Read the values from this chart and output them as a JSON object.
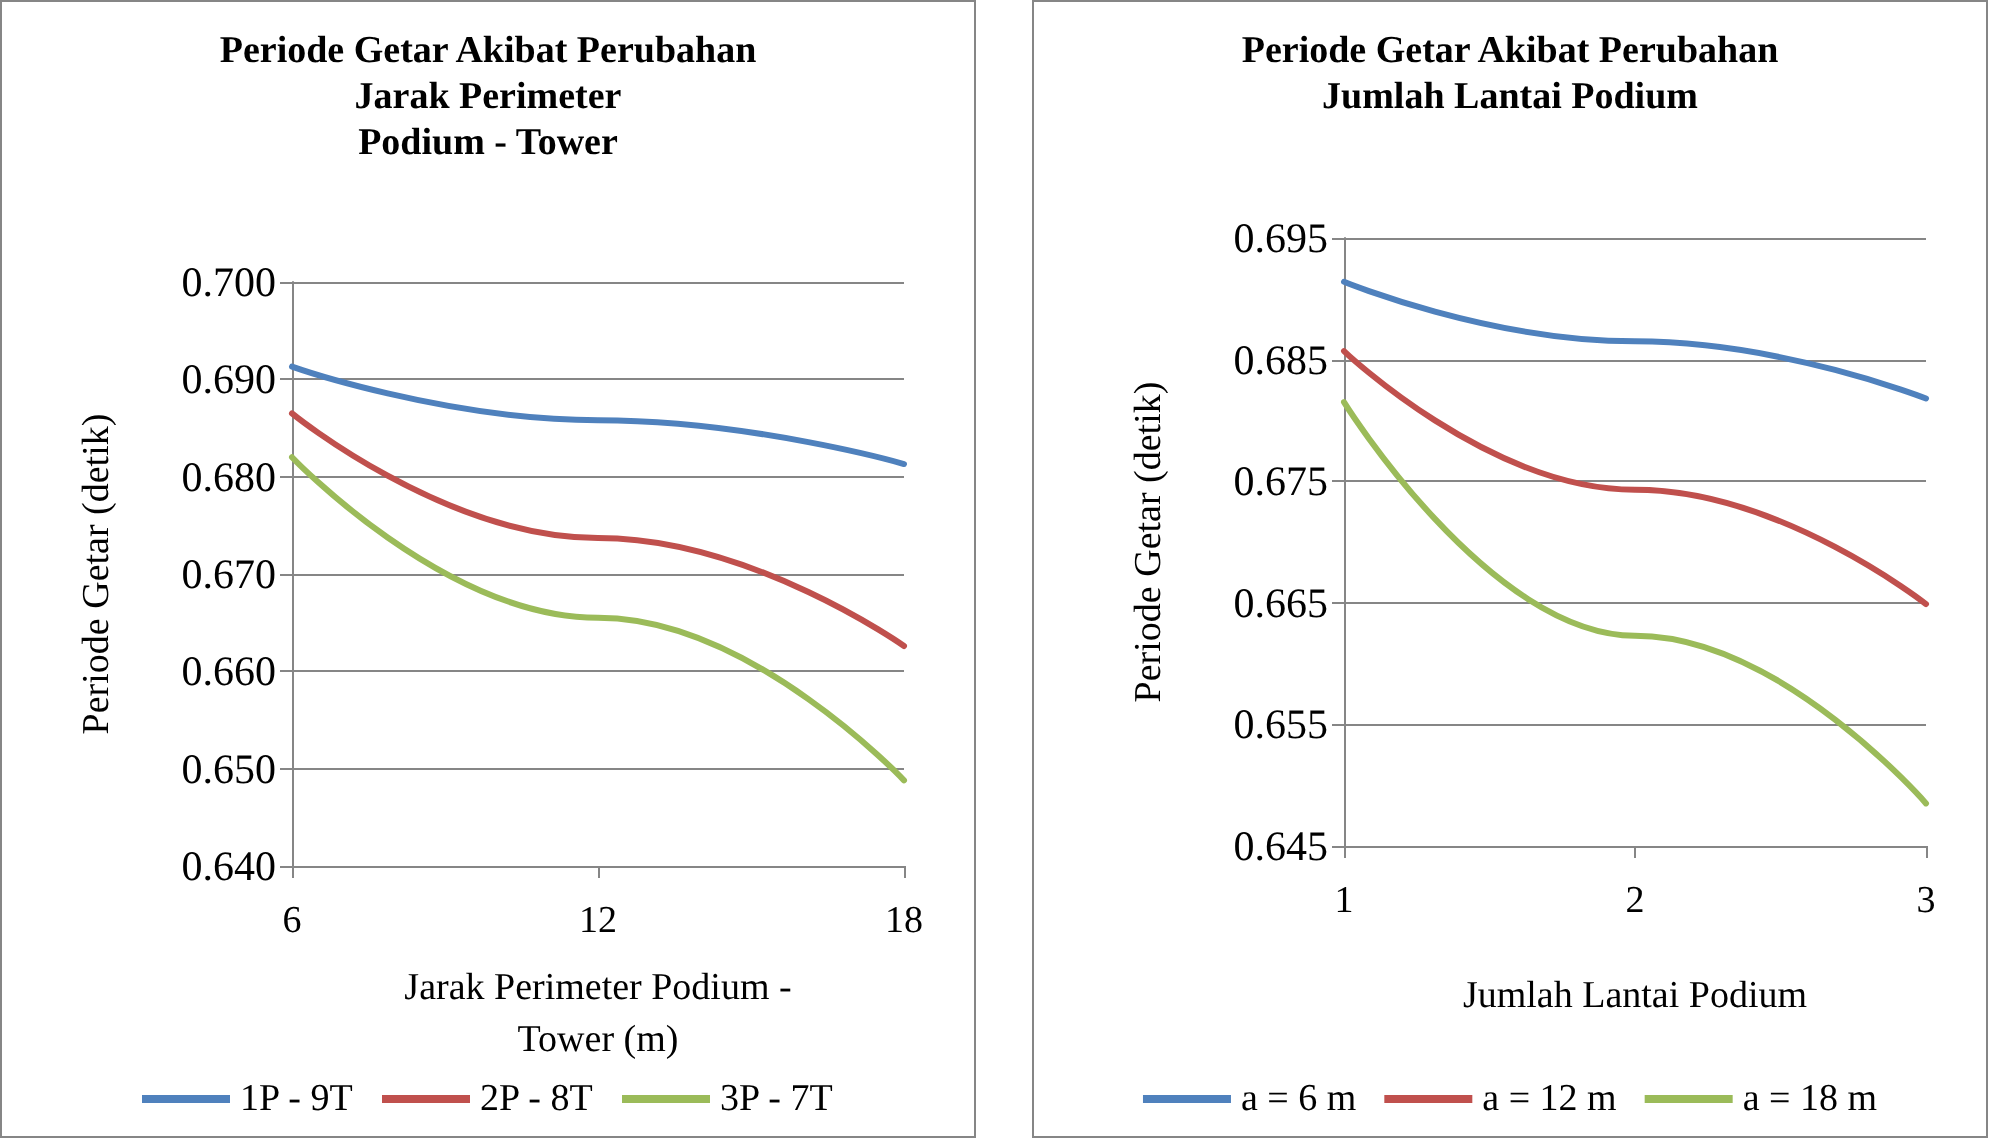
{
  "chart_data": [
    {
      "type": "line",
      "title": "Periode Getar Akibat Perubahan\nJarak Perimeter\nPodium - Tower",
      "xlabel": "Jarak Perimeter Podium -\nTower (m)",
      "ylabel": "Periode Getar (detik)",
      "x": [
        6,
        12,
        18
      ],
      "xlim": [
        6,
        18
      ],
      "xticks": [
        6,
        12,
        18
      ],
      "ylim": [
        0.64,
        0.7
      ],
      "yticks": [
        {
          "value": 0.64,
          "label": "0.640"
        },
        {
          "value": 0.65,
          "label": "0.650"
        },
        {
          "value": 0.66,
          "label": "0.660"
        },
        {
          "value": 0.67,
          "label": "0.670"
        },
        {
          "value": 0.68,
          "label": "0.680"
        },
        {
          "value": 0.69,
          "label": "0.690"
        },
        {
          "value": 0.7,
          "label": "0.700"
        }
      ],
      "grid": "y",
      "legend": "bottom",
      "marker": "none",
      "line_style": "solid",
      "series": [
        {
          "name": "1P - 9T",
          "color": "#4f81bd",
          "values": [
            0.6913,
            0.6858,
            0.6813
          ]
        },
        {
          "name": "2P - 8T",
          "color": "#c0504d",
          "values": [
            0.6865,
            0.6737,
            0.6626
          ]
        },
        {
          "name": "3P - 7T",
          "color": "#9bbb59",
          "values": [
            0.682,
            0.6655,
            0.6488
          ]
        }
      ]
    },
    {
      "type": "line",
      "title": "Periode Getar Akibat Perubahan\nJumlah Lantai Podium",
      "xlabel": "Jumlah Lantai Podium",
      "ylabel": "Periode Getar (detik)",
      "x": [
        1,
        2,
        3
      ],
      "xlim": [
        1,
        3
      ],
      "xticks": [
        1,
        2,
        3
      ],
      "ylim": [
        0.645,
        0.695
      ],
      "yticks": [
        {
          "value": 0.645,
          "label": "0.645"
        },
        {
          "value": 0.655,
          "label": "0.655"
        },
        {
          "value": 0.665,
          "label": "0.665"
        },
        {
          "value": 0.675,
          "label": "0.675"
        },
        {
          "value": 0.685,
          "label": "0.685"
        },
        {
          "value": 0.695,
          "label": "0.695"
        }
      ],
      "grid": "y",
      "legend": "bottom",
      "marker": "none",
      "line_style": "solid",
      "series": [
        {
          "name": "a = 6 m",
          "color": "#4f81bd",
          "values": [
            0.6914,
            0.6865,
            0.6818
          ]
        },
        {
          "name": "a = 12 m",
          "color": "#c0504d",
          "values": [
            0.6857,
            0.6743,
            0.6649
          ]
        },
        {
          "name": "a = 18 m",
          "color": "#9bbb59",
          "values": [
            0.6815,
            0.6623,
            0.6485
          ]
        }
      ]
    }
  ]
}
